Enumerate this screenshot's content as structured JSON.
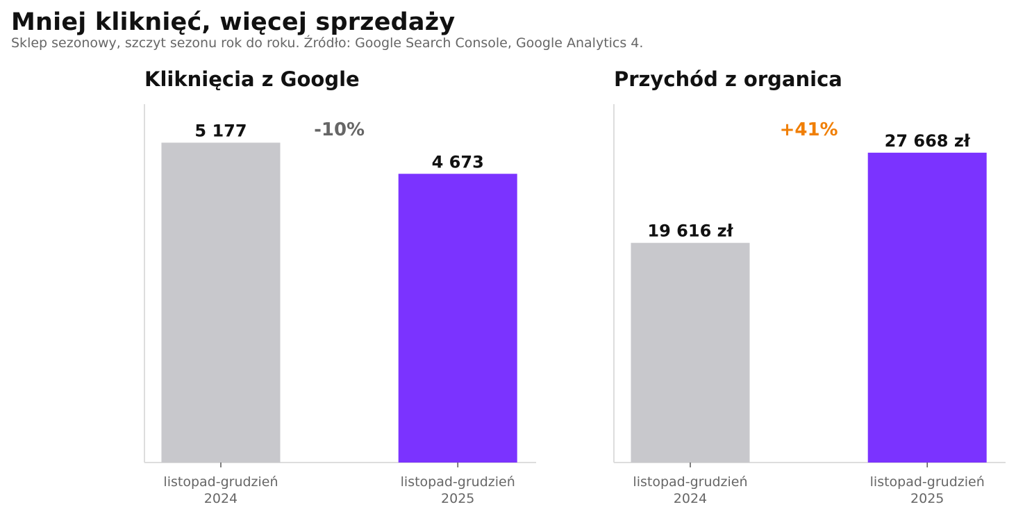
{
  "header": {
    "title": "Mniej kliknięć, więcej sprzedaży",
    "subtitle": "Sklep sezonowy, szczyt sezonu rok do roku. Źródło: Google Search Console, Google Analytics 4."
  },
  "colors": {
    "baseline_bar": "#c8c8cc",
    "current_bar": "#7b33ff",
    "negative_change": "#666666",
    "positive_change": "#f07f06",
    "axis": "#dddddd",
    "label_text": "#111111",
    "tick_text": "#666666"
  },
  "chart_data": [
    {
      "type": "bar",
      "title": "Kliknięcia z Google",
      "categories": [
        [
          "listopad-grudzień",
          "2024"
        ],
        [
          "listopad-grudzień",
          "2025"
        ]
      ],
      "values": [
        5177,
        4673
      ],
      "value_labels": [
        "5 177",
        "4 673"
      ],
      "change_label": "-10%",
      "change_color": "#666666",
      "ylim": [
        0,
        5800
      ],
      "grid": false,
      "y_axis_ticks_visible": false
    },
    {
      "type": "bar",
      "title": "Przychód z organica",
      "categories": [
        [
          "listopad-grudzień",
          "2024"
        ],
        [
          "listopad-grudzień",
          "2025"
        ]
      ],
      "values": [
        19616,
        27668
      ],
      "value_labels": [
        "19 616 zł",
        "27 668 zł"
      ],
      "change_label": "+41%",
      "change_color": "#f07f06",
      "ylim": [
        0,
        32000
      ],
      "grid": false,
      "y_axis_ticks_visible": false
    }
  ]
}
